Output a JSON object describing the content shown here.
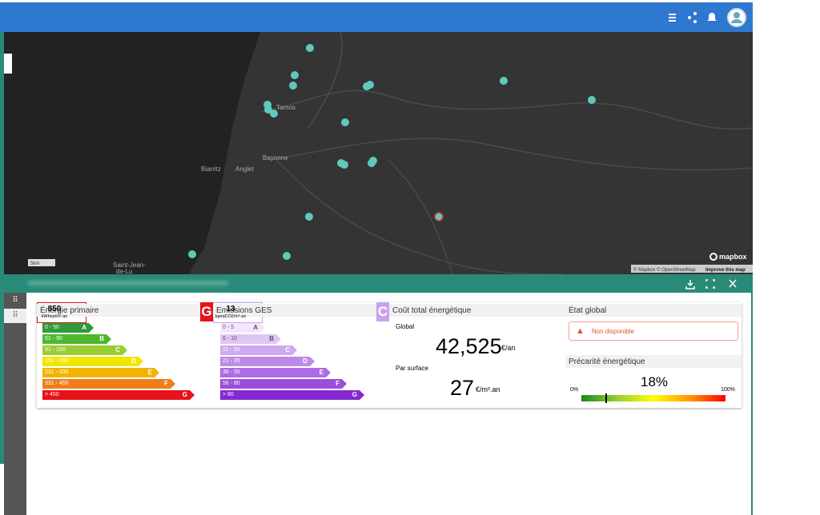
{
  "map": {
    "places": [
      "Tarnos",
      "Bayonne",
      "Biarritz",
      "Anglet",
      "Saint-Jean-",
      "de-Lu"
    ],
    "scale": "5km",
    "logo": "mapbox",
    "attribution": "© Mapbox © OpenStreetMap",
    "improve": "Improve this map"
  },
  "energy": {
    "title": "Énergie primaire",
    "classes": [
      {
        "range": "0 - 50",
        "letter": "A"
      },
      {
        "range": "51 - 90",
        "letter": "B"
      },
      {
        "range": "91 - 150",
        "letter": "C"
      },
      {
        "range": "151 - 230",
        "letter": "D"
      },
      {
        "range": "231 - 330",
        "letter": "E"
      },
      {
        "range": "331 - 450",
        "letter": "F"
      },
      {
        "range": "> 450",
        "letter": "G"
      }
    ],
    "value": "850",
    "unit": "kWhep/m².an",
    "letter": "G"
  },
  "ges": {
    "title": "Emissions GES",
    "classes": [
      {
        "range": "0 - 5",
        "letter": "A"
      },
      {
        "range": "6 - 10",
        "letter": "B"
      },
      {
        "range": "11 - 20",
        "letter": "C"
      },
      {
        "range": "21 - 35",
        "letter": "D"
      },
      {
        "range": "36 - 55",
        "letter": "E"
      },
      {
        "range": "56 - 80",
        "letter": "F"
      },
      {
        "range": "> 80",
        "letter": "G"
      }
    ],
    "value": "13",
    "unit": "kgeqCO2/m².an",
    "letter": "C"
  },
  "cost": {
    "title": "Coût total énergétique",
    "global_label": "Global",
    "global_value": "42,525",
    "global_unit": "€/an",
    "surface_label": "Par surface",
    "surface_value": "27",
    "surface_unit": "€/m².an"
  },
  "status": {
    "title": "État global",
    "alert": "Non disponible",
    "precarity_title": "Précarité énergétique",
    "precarity_value": "18%",
    "min": "0%",
    "max": "100%"
  }
}
